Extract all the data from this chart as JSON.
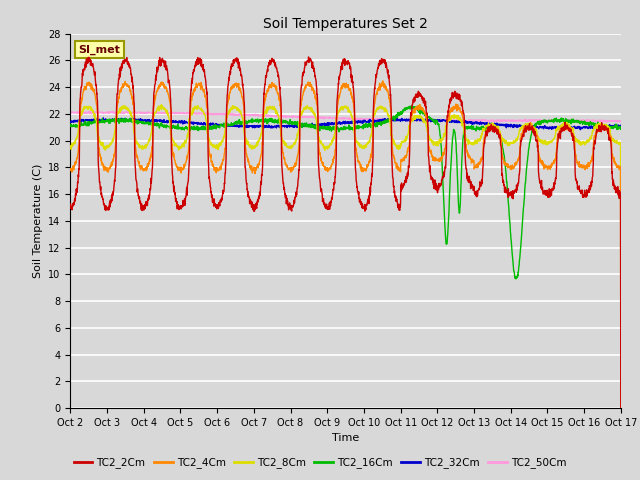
{
  "title": "Soil Temperatures Set 2",
  "xlabel": "Time",
  "ylabel": "Soil Temperature (C)",
  "xlim": [
    0,
    15
  ],
  "ylim": [
    0,
    28
  ],
  "yticks": [
    0,
    2,
    4,
    6,
    8,
    10,
    12,
    14,
    16,
    18,
    20,
    22,
    24,
    26,
    28
  ],
  "xtick_positions": [
    0,
    1,
    2,
    3,
    4,
    5,
    6,
    7,
    8,
    9,
    10,
    11,
    12,
    13,
    14,
    15
  ],
  "xtick_labels": [
    "Oct 2",
    "Oct 3",
    "Oct 4",
    "Oct 5",
    "Oct 6",
    "Oct 7",
    "Oct 8",
    "Oct 9",
    "Oct 10",
    "Oct 11",
    "Oct 12",
    "Oct 13",
    "Oct 14",
    "Oct 15",
    "Oct 16",
    "Oct 17"
  ],
  "series_colors": {
    "TC2_2Cm": "#cc0000",
    "TC2_4Cm": "#ff8800",
    "TC2_8Cm": "#dddd00",
    "TC2_16Cm": "#00bb00",
    "TC2_32Cm": "#0000cc",
    "TC2_50Cm": "#ff99dd"
  },
  "legend_label": "SI_met",
  "fig_bg_color": "#d8d8d8",
  "plot_bg_color": "#d8d8d8",
  "grid_color": "#ffffff"
}
